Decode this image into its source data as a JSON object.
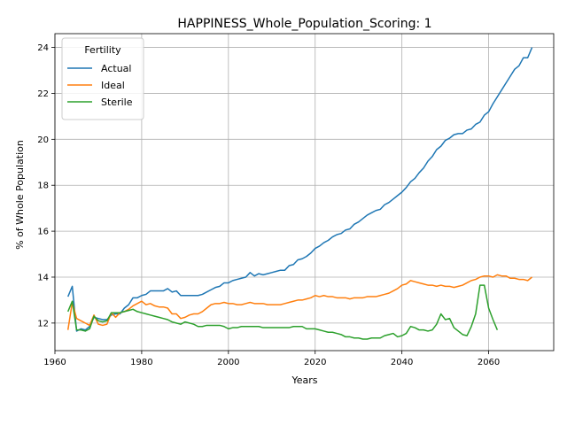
{
  "chart_data": {
    "type": "line",
    "title": "HAPPINESS_Whole_Population_Scoring: 1",
    "xlabel": "Years",
    "ylabel": "% of Whole Population",
    "xlim": [
      1960,
      2075
    ],
    "ylim": [
      10.8,
      24.6
    ],
    "xticks": [
      1960,
      1980,
      2000,
      2020,
      2040,
      2060
    ],
    "yticks": [
      12,
      14,
      16,
      18,
      20,
      22,
      24
    ],
    "grid": true,
    "legend": {
      "title": "Fertility",
      "placement": "top-left"
    },
    "series": [
      {
        "name": "Actual",
        "color": "#1f77b4",
        "points": [
          [
            1963,
            13.15
          ],
          [
            1964,
            13.6
          ],
          [
            1965,
            11.65
          ],
          [
            1966,
            11.75
          ],
          [
            1967,
            11.7
          ],
          [
            1968,
            11.85
          ],
          [
            1969,
            12.25
          ],
          [
            1970,
            12.2
          ],
          [
            1971,
            12.15
          ],
          [
            1972,
            12.15
          ],
          [
            1973,
            12.35
          ],
          [
            1974,
            12.4
          ],
          [
            1975,
            12.4
          ],
          [
            1976,
            12.65
          ],
          [
            1977,
            12.8
          ],
          [
            1978,
            13.1
          ],
          [
            1979,
            13.1
          ],
          [
            1980,
            13.2
          ],
          [
            1981,
            13.25
          ],
          [
            1982,
            13.4
          ],
          [
            1983,
            13.4
          ],
          [
            1984,
            13.4
          ],
          [
            1985,
            13.4
          ],
          [
            1986,
            13.5
          ],
          [
            1987,
            13.35
          ],
          [
            1988,
            13.4
          ],
          [
            1989,
            13.2
          ],
          [
            1990,
            13.2
          ],
          [
            1991,
            13.2
          ],
          [
            1992,
            13.2
          ],
          [
            1993,
            13.2
          ],
          [
            1994,
            13.25
          ],
          [
            1995,
            13.35
          ],
          [
            1996,
            13.45
          ],
          [
            1997,
            13.55
          ],
          [
            1998,
            13.6
          ],
          [
            1999,
            13.75
          ],
          [
            2000,
            13.75
          ],
          [
            2001,
            13.85
          ],
          [
            2002,
            13.9
          ],
          [
            2003,
            13.95
          ],
          [
            2004,
            14.0
          ],
          [
            2005,
            14.2
          ],
          [
            2006,
            14.05
          ],
          [
            2007,
            14.15
          ],
          [
            2008,
            14.1
          ],
          [
            2009,
            14.15
          ],
          [
            2010,
            14.2
          ],
          [
            2011,
            14.25
          ],
          [
            2012,
            14.3
          ],
          [
            2013,
            14.3
          ],
          [
            2014,
            14.5
          ],
          [
            2015,
            14.55
          ],
          [
            2016,
            14.75
          ],
          [
            2017,
            14.8
          ],
          [
            2018,
            14.9
          ],
          [
            2019,
            15.05
          ],
          [
            2020,
            15.25
          ],
          [
            2021,
            15.35
          ],
          [
            2022,
            15.5
          ],
          [
            2023,
            15.6
          ],
          [
            2024,
            15.75
          ],
          [
            2025,
            15.85
          ],
          [
            2026,
            15.9
          ],
          [
            2027,
            16.05
          ],
          [
            2028,
            16.1
          ],
          [
            2029,
            16.3
          ],
          [
            2030,
            16.4
          ],
          [
            2031,
            16.55
          ],
          [
            2032,
            16.7
          ],
          [
            2033,
            16.8
          ],
          [
            2034,
            16.9
          ],
          [
            2035,
            16.95
          ],
          [
            2036,
            17.15
          ],
          [
            2037,
            17.25
          ],
          [
            2038,
            17.4
          ],
          [
            2039,
            17.55
          ],
          [
            2040,
            17.7
          ],
          [
            2041,
            17.9
          ],
          [
            2042,
            18.15
          ],
          [
            2043,
            18.3
          ],
          [
            2044,
            18.55
          ],
          [
            2045,
            18.75
          ],
          [
            2046,
            19.05
          ],
          [
            2047,
            19.25
          ],
          [
            2048,
            19.55
          ],
          [
            2049,
            19.7
          ],
          [
            2050,
            19.95
          ],
          [
            2051,
            20.05
          ],
          [
            2052,
            20.2
          ],
          [
            2053,
            20.25
          ],
          [
            2054,
            20.25
          ],
          [
            2055,
            20.4
          ],
          [
            2056,
            20.45
          ],
          [
            2057,
            20.65
          ],
          [
            2058,
            20.75
          ],
          [
            2059,
            21.05
          ],
          [
            2060,
            21.2
          ],
          [
            2061,
            21.55
          ],
          [
            2062,
            21.85
          ],
          [
            2063,
            22.15
          ],
          [
            2064,
            22.45
          ],
          [
            2065,
            22.75
          ],
          [
            2066,
            23.05
          ],
          [
            2067,
            23.2
          ],
          [
            2068,
            23.55
          ],
          [
            2069,
            23.55
          ],
          [
            2070,
            24.0
          ]
        ]
      },
      {
        "name": "Ideal",
        "color": "#ff7f0e",
        "points": [
          [
            1963,
            11.7
          ],
          [
            1964,
            12.9
          ],
          [
            1965,
            12.2
          ],
          [
            1966,
            12.1
          ],
          [
            1967,
            12.0
          ],
          [
            1968,
            11.9
          ],
          [
            1969,
            12.35
          ],
          [
            1970,
            11.95
          ],
          [
            1971,
            11.9
          ],
          [
            1972,
            11.95
          ],
          [
            1973,
            12.45
          ],
          [
            1974,
            12.25
          ],
          [
            1975,
            12.45
          ],
          [
            1976,
            12.5
          ],
          [
            1977,
            12.6
          ],
          [
            1978,
            12.75
          ],
          [
            1979,
            12.85
          ],
          [
            1980,
            12.95
          ],
          [
            1981,
            12.8
          ],
          [
            1982,
            12.85
          ],
          [
            1983,
            12.75
          ],
          [
            1984,
            12.7
          ],
          [
            1985,
            12.7
          ],
          [
            1986,
            12.65
          ],
          [
            1987,
            12.4
          ],
          [
            1988,
            12.4
          ],
          [
            1989,
            12.2
          ],
          [
            1990,
            12.25
          ],
          [
            1991,
            12.35
          ],
          [
            1992,
            12.4
          ],
          [
            1993,
            12.4
          ],
          [
            1994,
            12.5
          ],
          [
            1995,
            12.65
          ],
          [
            1996,
            12.8
          ],
          [
            1997,
            12.85
          ],
          [
            1998,
            12.85
          ],
          [
            1999,
            12.9
          ],
          [
            2000,
            12.85
          ],
          [
            2001,
            12.85
          ],
          [
            2002,
            12.8
          ],
          [
            2003,
            12.8
          ],
          [
            2004,
            12.85
          ],
          [
            2005,
            12.9
          ],
          [
            2006,
            12.85
          ],
          [
            2007,
            12.85
          ],
          [
            2008,
            12.85
          ],
          [
            2009,
            12.8
          ],
          [
            2010,
            12.8
          ],
          [
            2011,
            12.8
          ],
          [
            2012,
            12.8
          ],
          [
            2013,
            12.85
          ],
          [
            2014,
            12.9
          ],
          [
            2015,
            12.95
          ],
          [
            2016,
            13.0
          ],
          [
            2017,
            13.0
          ],
          [
            2018,
            13.05
          ],
          [
            2019,
            13.1
          ],
          [
            2020,
            13.2
          ],
          [
            2021,
            13.15
          ],
          [
            2022,
            13.2
          ],
          [
            2023,
            13.15
          ],
          [
            2024,
            13.15
          ],
          [
            2025,
            13.1
          ],
          [
            2026,
            13.1
          ],
          [
            2027,
            13.1
          ],
          [
            2028,
            13.05
          ],
          [
            2029,
            13.1
          ],
          [
            2030,
            13.1
          ],
          [
            2031,
            13.1
          ],
          [
            2032,
            13.15
          ],
          [
            2033,
            13.15
          ],
          [
            2034,
            13.15
          ],
          [
            2035,
            13.2
          ],
          [
            2036,
            13.25
          ],
          [
            2037,
            13.3
          ],
          [
            2038,
            13.4
          ],
          [
            2039,
            13.5
          ],
          [
            2040,
            13.65
          ],
          [
            2041,
            13.7
          ],
          [
            2042,
            13.85
          ],
          [
            2043,
            13.8
          ],
          [
            2044,
            13.75
          ],
          [
            2045,
            13.7
          ],
          [
            2046,
            13.65
          ],
          [
            2047,
            13.65
          ],
          [
            2048,
            13.6
          ],
          [
            2049,
            13.65
          ],
          [
            2050,
            13.6
          ],
          [
            2051,
            13.6
          ],
          [
            2052,
            13.55
          ],
          [
            2053,
            13.6
          ],
          [
            2054,
            13.65
          ],
          [
            2055,
            13.75
          ],
          [
            2056,
            13.85
          ],
          [
            2057,
            13.9
          ],
          [
            2058,
            14.0
          ],
          [
            2059,
            14.05
          ],
          [
            2060,
            14.05
          ],
          [
            2061,
            14.0
          ],
          [
            2062,
            14.1
          ],
          [
            2063,
            14.05
          ],
          [
            2064,
            14.05
          ],
          [
            2065,
            13.95
          ],
          [
            2066,
            13.95
          ],
          [
            2067,
            13.9
          ],
          [
            2068,
            13.9
          ],
          [
            2069,
            13.85
          ],
          [
            2070,
            14.0
          ]
        ]
      },
      {
        "name": "Sterile",
        "color": "#2ca02c",
        "points": [
          [
            1963,
            12.5
          ],
          [
            1964,
            12.95
          ],
          [
            1965,
            11.7
          ],
          [
            1966,
            11.7
          ],
          [
            1967,
            11.65
          ],
          [
            1968,
            11.75
          ],
          [
            1969,
            12.3
          ],
          [
            1970,
            12.1
          ],
          [
            1971,
            12.05
          ],
          [
            1972,
            12.1
          ],
          [
            1973,
            12.45
          ],
          [
            1974,
            12.45
          ],
          [
            1975,
            12.45
          ],
          [
            1976,
            12.5
          ],
          [
            1977,
            12.55
          ],
          [
            1978,
            12.6
          ],
          [
            1979,
            12.5
          ],
          [
            1980,
            12.45
          ],
          [
            1981,
            12.4
          ],
          [
            1982,
            12.35
          ],
          [
            1983,
            12.3
          ],
          [
            1984,
            12.25
          ],
          [
            1985,
            12.2
          ],
          [
            1986,
            12.15
          ],
          [
            1987,
            12.05
          ],
          [
            1988,
            12.0
          ],
          [
            1989,
            11.95
          ],
          [
            1990,
            12.05
          ],
          [
            1991,
            12.0
          ],
          [
            1992,
            11.95
          ],
          [
            1993,
            11.85
          ],
          [
            1994,
            11.85
          ],
          [
            1995,
            11.9
          ],
          [
            1996,
            11.9
          ],
          [
            1997,
            11.9
          ],
          [
            1998,
            11.9
          ],
          [
            1999,
            11.85
          ],
          [
            2000,
            11.75
          ],
          [
            2001,
            11.8
          ],
          [
            2002,
            11.8
          ],
          [
            2003,
            11.85
          ],
          [
            2004,
            11.85
          ],
          [
            2005,
            11.85
          ],
          [
            2006,
            11.85
          ],
          [
            2007,
            11.85
          ],
          [
            2008,
            11.8
          ],
          [
            2009,
            11.8
          ],
          [
            2010,
            11.8
          ],
          [
            2011,
            11.8
          ],
          [
            2012,
            11.8
          ],
          [
            2013,
            11.8
          ],
          [
            2014,
            11.8
          ],
          [
            2015,
            11.85
          ],
          [
            2016,
            11.85
          ],
          [
            2017,
            11.85
          ],
          [
            2018,
            11.75
          ],
          [
            2019,
            11.75
          ],
          [
            2020,
            11.75
          ],
          [
            2021,
            11.7
          ],
          [
            2022,
            11.65
          ],
          [
            2023,
            11.6
          ],
          [
            2024,
            11.6
          ],
          [
            2025,
            11.55
          ],
          [
            2026,
            11.5
          ],
          [
            2027,
            11.4
          ],
          [
            2028,
            11.4
          ],
          [
            2029,
            11.35
          ],
          [
            2030,
            11.35
          ],
          [
            2031,
            11.3
          ],
          [
            2032,
            11.3
          ],
          [
            2033,
            11.35
          ],
          [
            2034,
            11.35
          ],
          [
            2035,
            11.35
          ],
          [
            2036,
            11.45
          ],
          [
            2037,
            11.5
          ],
          [
            2038,
            11.55
          ],
          [
            2039,
            11.4
          ],
          [
            2040,
            11.45
          ],
          [
            2041,
            11.55
          ],
          [
            2042,
            11.85
          ],
          [
            2043,
            11.8
          ],
          [
            2044,
            11.7
          ],
          [
            2045,
            11.7
          ],
          [
            2046,
            11.65
          ],
          [
            2047,
            11.7
          ],
          [
            2048,
            11.95
          ],
          [
            2049,
            12.4
          ],
          [
            2050,
            12.15
          ],
          [
            2051,
            12.2
          ],
          [
            2052,
            11.8
          ],
          [
            2053,
            11.65
          ],
          [
            2054,
            11.5
          ],
          [
            2055,
            11.45
          ],
          [
            2056,
            11.85
          ],
          [
            2057,
            12.4
          ],
          [
            2058,
            13.65
          ],
          [
            2059,
            13.65
          ],
          [
            2060,
            12.65
          ],
          [
            2061,
            12.15
          ],
          [
            2062,
            11.7
          ]
        ]
      }
    ]
  }
}
